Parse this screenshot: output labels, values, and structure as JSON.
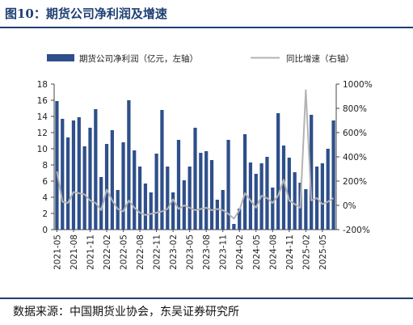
{
  "header": {
    "title": "图10：期货公司净利润及增速",
    "source": "数据来源：中国期货业协会，东吴证券研究所"
  },
  "chart_data": {
    "type": "bar",
    "x": [
      "2021-05",
      "2021-06",
      "2021-07",
      "2021-08",
      "2021-09",
      "2021-10",
      "2021-11",
      "2021-12",
      "2022-01",
      "2022-02",
      "2022-03",
      "2022-04",
      "2022-05",
      "2022-06",
      "2022-07",
      "2022-08",
      "2022-09",
      "2022-10",
      "2022-11",
      "2022-12",
      "2023-01",
      "2023-02",
      "2023-03",
      "2023-04",
      "2023-05",
      "2023-06",
      "2023-07",
      "2023-08",
      "2023-09",
      "2023-10",
      "2023-11",
      "2023-12",
      "2024-01",
      "2024-02",
      "2024-03",
      "2024-04",
      "2024-05",
      "2024-06",
      "2024-07",
      "2024-08",
      "2024-09",
      "2024-10",
      "2024-11",
      "2024-12",
      "2025-01",
      "2025-02",
      "2025-03",
      "2025-04",
      "2025-05",
      "2025-06",
      "2025-07"
    ],
    "xtick_labels": [
      "2021-05",
      "2021-08",
      "2021-11",
      "2022-02",
      "2022-05",
      "2022-08",
      "2022-11",
      "2023-02",
      "2023-05",
      "2023-08",
      "2023-11",
      "2024-02",
      "2024-05",
      "2024-08",
      "2024-11",
      "2025-02",
      "2025-05"
    ],
    "series": [
      {
        "name": "期货公司净利润（亿元，左轴）",
        "type": "bar",
        "axis": "left",
        "color": "#2e4f8a",
        "values": [
          15.9,
          13.7,
          11.4,
          13.5,
          13.9,
          10.3,
          12.6,
          14.9,
          6.5,
          10.6,
          12.3,
          4.9,
          10.8,
          16.0,
          9.8,
          7.8,
          5.7,
          4.6,
          9.4,
          14.8,
          7.8,
          4.6,
          11.1,
          6.1,
          7.8,
          12.6,
          9.5,
          9.7,
          8.6,
          3.7,
          4.9,
          11.1,
          0.7,
          2.6,
          11.8,
          8.3,
          6.9,
          8.2,
          9.0,
          5.2,
          14.4,
          10.4,
          8.9,
          7.1,
          5.8,
          5.0,
          14.2,
          7.8,
          8.2,
          10.0,
          13.5
        ]
      },
      {
        "name": "同比增速（右轴）",
        "type": "line",
        "axis": "right",
        "color": "#b3b3b3",
        "values": [
          280,
          30,
          20,
          110,
          100,
          90,
          40,
          20,
          -40,
          130,
          40,
          -30,
          -50,
          40,
          -20,
          -60,
          -80,
          -70,
          -60,
          -50,
          -30,
          50,
          -30,
          0,
          -20,
          -40,
          -30,
          -20,
          -40,
          -30,
          -40,
          -70,
          -110,
          -40,
          100,
          40,
          -20,
          80,
          60,
          20,
          80,
          210,
          40,
          10,
          -20,
          950,
          40,
          60,
          10,
          30,
          60
        ]
      }
    ],
    "left_axis": {
      "ylim": [
        0,
        18
      ],
      "ticks": [
        "0",
        "2",
        "4",
        "6",
        "8",
        "10",
        "12",
        "14",
        "16",
        "18"
      ]
    },
    "right_axis": {
      "ylim": [
        -200,
        1000
      ],
      "ticks": [
        "-200%",
        "0%",
        "200%",
        "400%",
        "600%",
        "800%",
        "1000%"
      ]
    },
    "legend_placement": "top",
    "grid": false
  }
}
